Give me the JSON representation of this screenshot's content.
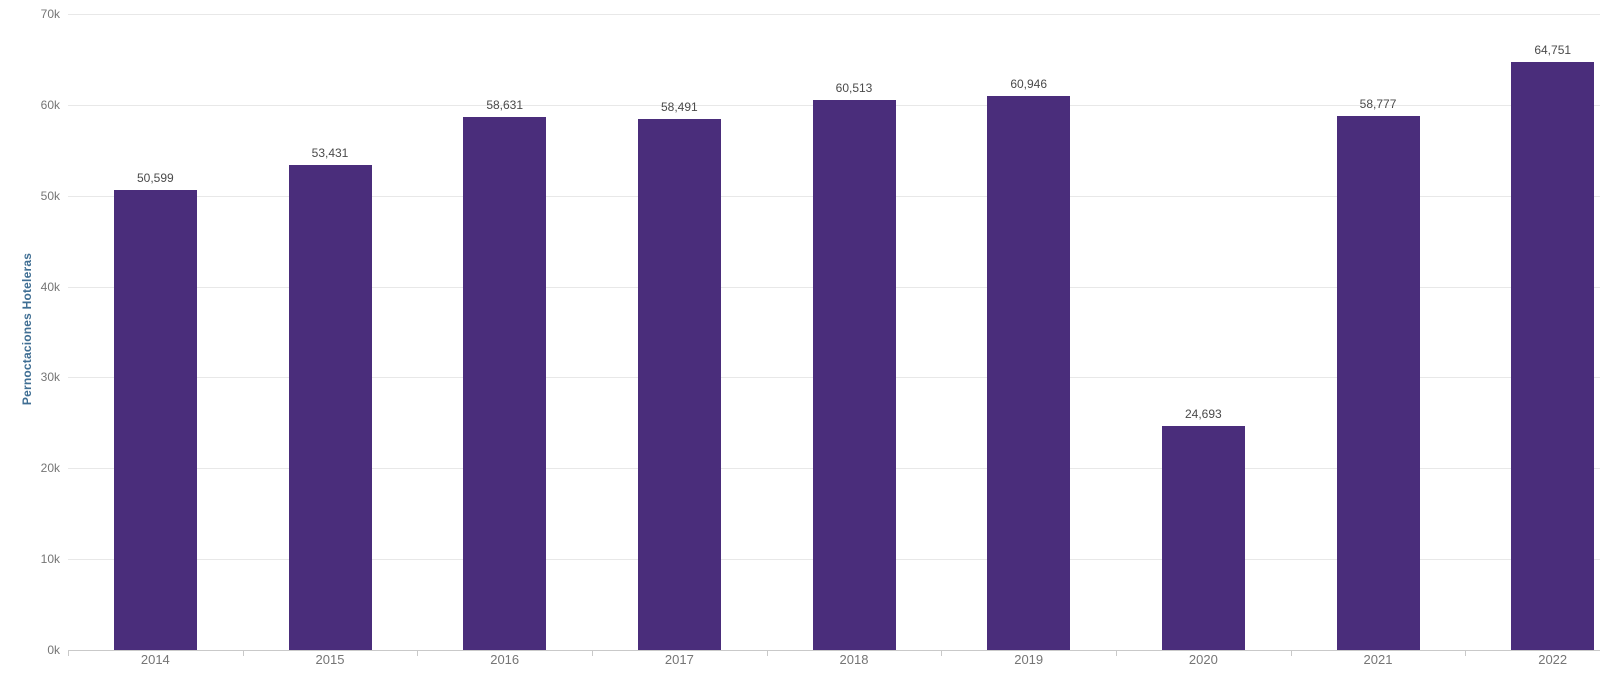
{
  "chart_data": {
    "type": "bar",
    "title": "",
    "xlabel": "",
    "ylabel": "Pernoctaciones Hoteleras",
    "categories": [
      "2014",
      "2015",
      "2016",
      "2017",
      "2018",
      "2019",
      "2020",
      "2021",
      "2022"
    ],
    "values": [
      50599,
      53431,
      58631,
      58491,
      60513,
      60946,
      24693,
      58777,
      64751
    ],
    "value_labels": [
      "50,599",
      "53,431",
      "58,631",
      "58,491",
      "60,513",
      "60,946",
      "24,693",
      "58,777",
      "64,751"
    ],
    "y_ticks": [
      {
        "value": 0,
        "label": "0k"
      },
      {
        "value": 10000,
        "label": "10k"
      },
      {
        "value": 20000,
        "label": "20k"
      },
      {
        "value": 30000,
        "label": "30k"
      },
      {
        "value": 40000,
        "label": "40k"
      },
      {
        "value": 50000,
        "label": "50k"
      },
      {
        "value": 60000,
        "label": "60k"
      },
      {
        "value": 70000,
        "label": "70k"
      }
    ],
    "ylim": [
      0,
      70000
    ],
    "grid": "horizontal",
    "legend": "none",
    "colors": {
      "bar": "#4A2D7B",
      "gridline": "#E8E8E8",
      "axis_line": "#C9C9C9",
      "data_label": "#4A4A4A",
      "tick_label": "#757575",
      "axis_title": "#3F6E93",
      "background": "#FFFFFF"
    }
  }
}
